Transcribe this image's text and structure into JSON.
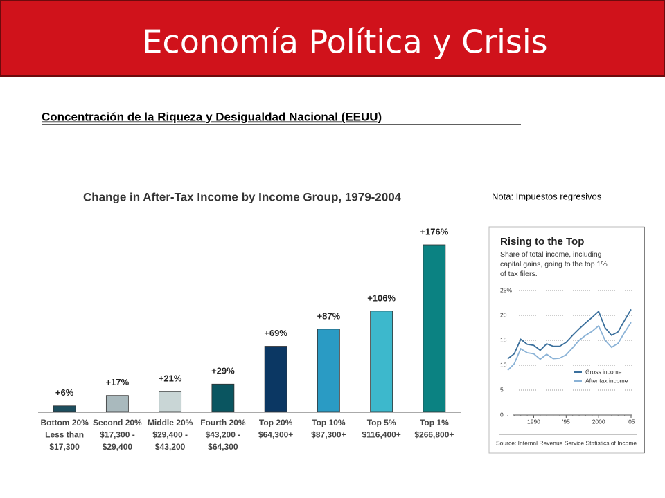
{
  "slide": {
    "title": "Economía Política y Crisis",
    "subtitle": "Concentración de la Riqueza y Desigualdad Nacional (EEUU)",
    "note": "Nota: Impuestos regresivos"
  },
  "chart_data": [
    {
      "type": "bar",
      "title": "Change in After-Tax Income by Income Group, 1979-2004",
      "categories": [
        [
          "Bottom 20%",
          "Less than",
          "$17,300"
        ],
        [
          "Second 20%",
          "$17,300 -",
          "$29,400"
        ],
        [
          "Middle 20%",
          "$29,400 -",
          "$43,200"
        ],
        [
          "Fourth 20%",
          "$43,200 -",
          "$64,300"
        ],
        [
          "Top 20%",
          "$64,300+"
        ],
        [
          "Top 10%",
          "$87,300+"
        ],
        [
          "Top 5%",
          "$116,400+"
        ],
        [
          "Top 1%",
          "$266,800+"
        ]
      ],
      "values": [
        6,
        17,
        21,
        29,
        69,
        87,
        106,
        176
      ],
      "value_labels": [
        "+6%",
        "+17%",
        "+21%",
        "+29%",
        "+69%",
        "+87%",
        "+106%",
        "+176%"
      ],
      "colors": [
        "#1d4e5e",
        "#a9b9bd",
        "#c9d6d6",
        "#0a5560",
        "#0b3763",
        "#2a9bc4",
        "#3db8cc",
        "#0b8282"
      ]
    },
    {
      "type": "line",
      "title": "Rising to the Top",
      "subtitle": [
        "Share of total income, including",
        "capital gains, going to the top 1%",
        "of tax filers."
      ],
      "x": [
        1986,
        1987,
        1988,
        1989,
        1990,
        1991,
        1992,
        1993,
        1994,
        1995,
        1996,
        1997,
        1998,
        1999,
        2000,
        2001,
        2002,
        2003,
        2004,
        2005
      ],
      "series": [
        {
          "name": "Gross income",
          "color": "#3a6f9c",
          "values": [
            11.3,
            12.3,
            15.2,
            14.2,
            14.0,
            13.0,
            14.3,
            13.8,
            13.8,
            14.6,
            16.0,
            17.3,
            18.5,
            19.6,
            20.8,
            17.5,
            16.0,
            16.7,
            19.0,
            21.2
          ]
        },
        {
          "name": "After tax income",
          "color": "#8ab2d6",
          "values": [
            9.0,
            10.3,
            13.3,
            12.5,
            12.3,
            11.2,
            12.2,
            11.3,
            11.4,
            12.1,
            13.5,
            15.0,
            16.0,
            16.8,
            17.9,
            15.0,
            13.6,
            14.4,
            16.6,
            18.6
          ]
        }
      ],
      "xlim": [
        1986,
        2005
      ],
      "xticks": [
        1990,
        {
          "value": 1995,
          "label": "'95"
        },
        2000,
        {
          "value": 2005,
          "label": "'05"
        }
      ],
      "ylim": [
        0,
        25
      ],
      "yticks": [
        0,
        5,
        10,
        15,
        20,
        {
          "value": 25,
          "label": "25%"
        }
      ],
      "grid": true,
      "source": "Source: Internal Revenue Service Statistics of Income"
    }
  ]
}
